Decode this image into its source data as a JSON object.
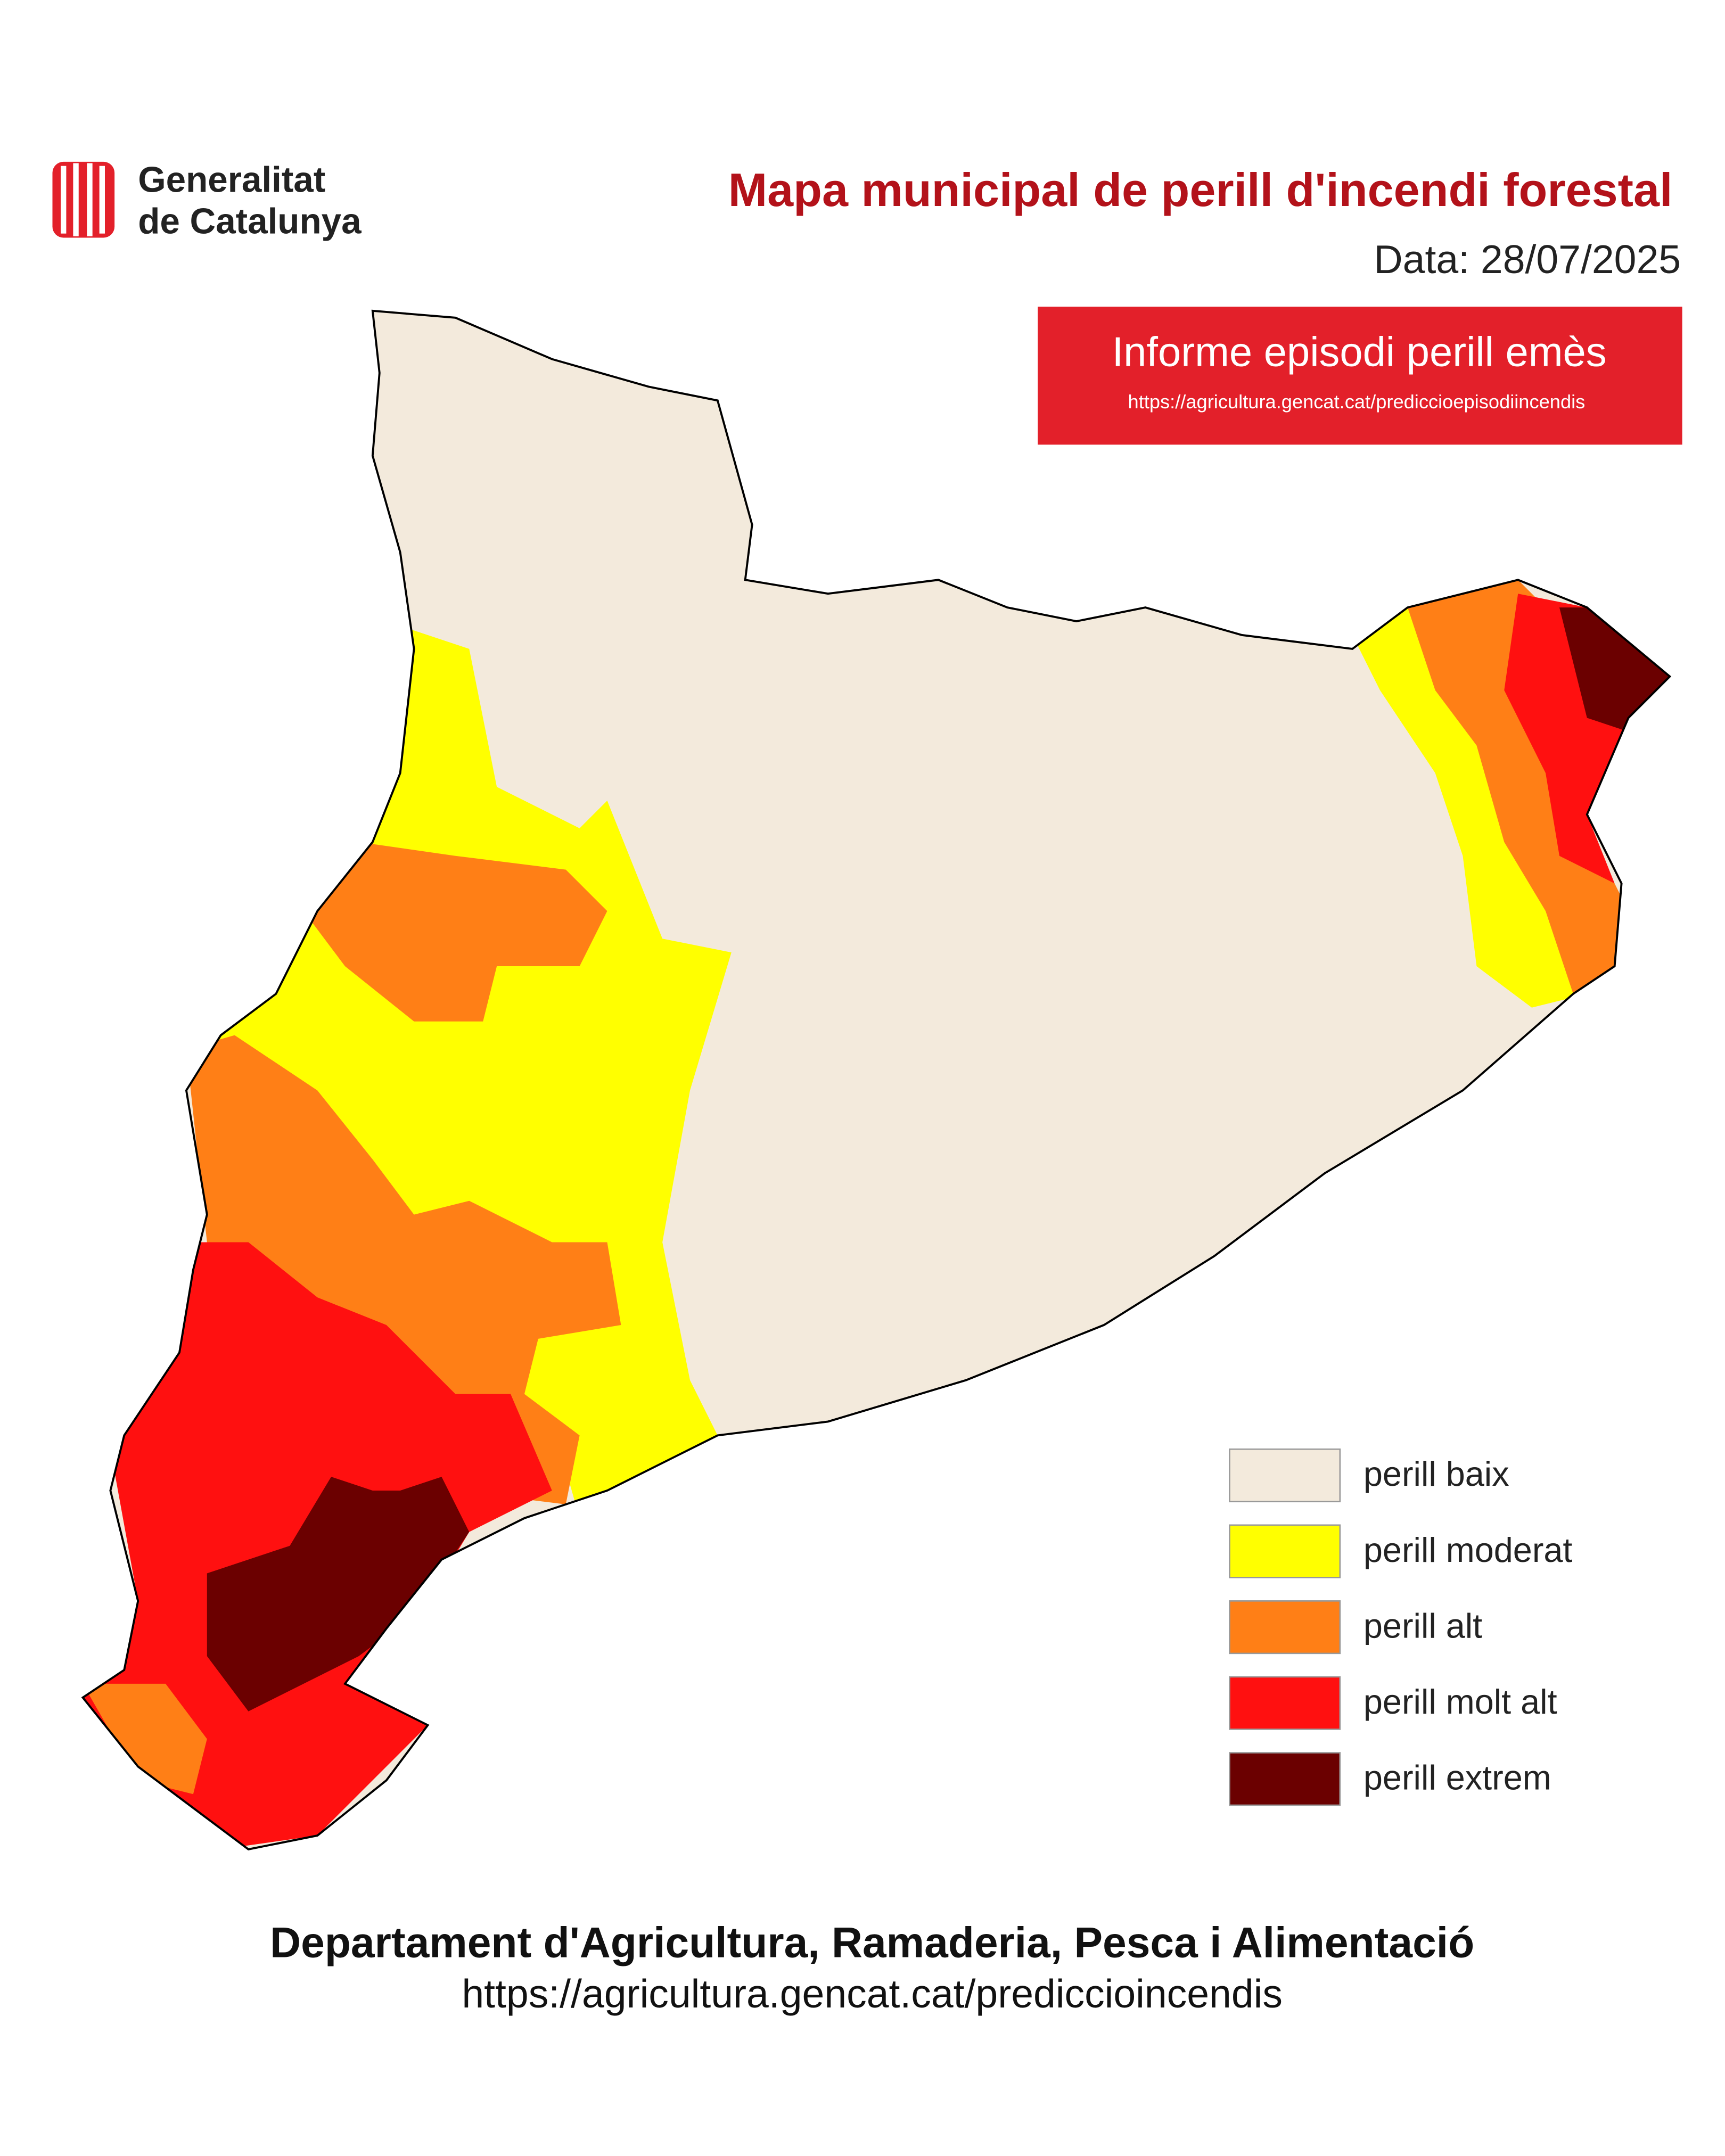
{
  "header": {
    "logo_lines": [
      "Generalitat",
      "de Catalunya"
    ],
    "title": "Mapa municipal de perill d'incendi forestal",
    "date": "Data: 28/07/2025"
  },
  "notice": {
    "title": "Informe episodi perill emès",
    "url": "https://agricultura.gencat.cat/prediccioepisodiincendis",
    "color": "#e3202a"
  },
  "legend": {
    "items": [
      {
        "label": "perill baix",
        "color": "#f3eadc"
      },
      {
        "label": "perill moderat",
        "color": "#ffff00"
      },
      {
        "label": "perill alt",
        "color": "#ff7f16"
      },
      {
        "label": "perill molt alt",
        "color": "#ff1010"
      },
      {
        "label": "perill extrem",
        "color": "#6b0000"
      }
    ]
  },
  "footer": {
    "department": "Departament d'Agricultura, Ramaderia, Pesca i Alimentació",
    "url": "https://agricultura.gencat.cat/prediccioincendis"
  }
}
